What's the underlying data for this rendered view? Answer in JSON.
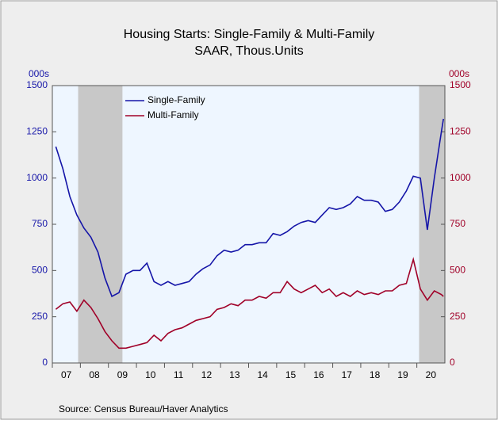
{
  "chart_data": {
    "type": "line",
    "title": "Housing Starts: Single-Family & Multi-Family",
    "subtitle": "SAAR, Thous.Units",
    "y_unit": "000s",
    "y2_unit": "000s",
    "source": "Source: Census Bureau/Haver Analytics",
    "x": [
      2007.125,
      2007.375,
      2007.625,
      2007.875,
      2008.125,
      2008.375,
      2008.625,
      2008.875,
      2009.125,
      2009.375,
      2009.625,
      2009.875,
      2010.125,
      2010.375,
      2010.625,
      2010.875,
      2011.125,
      2011.375,
      2011.625,
      2011.875,
      2012.125,
      2012.375,
      2012.625,
      2012.875,
      2013.125,
      2013.375,
      2013.625,
      2013.875,
      2014.125,
      2014.375,
      2014.625,
      2014.875,
      2015.125,
      2015.375,
      2015.625,
      2015.875,
      2016.125,
      2016.375,
      2016.625,
      2016.875,
      2017.125,
      2017.375,
      2017.625,
      2017.875,
      2018.125,
      2018.375,
      2018.625,
      2018.875,
      2019.125,
      2019.375,
      2019.625,
      2019.875,
      2020.125,
      2020.375,
      2020.625,
      2020.875,
      2020.95
    ],
    "series": [
      {
        "name": "Single-Family",
        "color": "#1515a8",
        "axis": "y",
        "values": [
          1170,
          1050,
          900,
          800,
          730,
          680,
          600,
          460,
          360,
          380,
          480,
          500,
          500,
          540,
          440,
          420,
          440,
          420,
          430,
          440,
          480,
          510,
          530,
          580,
          610,
          600,
          610,
          640,
          640,
          650,
          650,
          700,
          690,
          710,
          740,
          760,
          770,
          760,
          800,
          840,
          830,
          840,
          860,
          900,
          880,
          880,
          870,
          820,
          830,
          870,
          930,
          1010,
          1000,
          720,
          1000,
          1250,
          1320
        ]
      },
      {
        "name": "Multi-Family",
        "color": "#a00028",
        "axis": "y2",
        "values": [
          290,
          320,
          330,
          280,
          340,
          300,
          240,
          170,
          120,
          80,
          80,
          90,
          100,
          110,
          150,
          120,
          160,
          180,
          190,
          210,
          230,
          240,
          250,
          290,
          300,
          320,
          310,
          340,
          340,
          360,
          350,
          380,
          380,
          440,
          400,
          380,
          400,
          420,
          380,
          400,
          360,
          380,
          360,
          390,
          370,
          380,
          370,
          390,
          390,
          420,
          430,
          560,
          400,
          340,
          390,
          370,
          360
        ]
      }
    ],
    "recessions": [
      [
        2007.92,
        2009.5
      ],
      [
        2020.08,
        2021
      ]
    ],
    "xlim": [
      2007,
      2021
    ],
    "xticks": [
      {
        "value": 2007,
        "label": "07"
      },
      {
        "value": 2008,
        "label": "08"
      },
      {
        "value": 2009,
        "label": "09"
      },
      {
        "value": 2010,
        "label": "10"
      },
      {
        "value": 2011,
        "label": "11"
      },
      {
        "value": 2012,
        "label": "12"
      },
      {
        "value": 2013,
        "label": "13"
      },
      {
        "value": 2014,
        "label": "14"
      },
      {
        "value": 2015,
        "label": "15"
      },
      {
        "value": 2016,
        "label": "16"
      },
      {
        "value": 2017,
        "label": "17"
      },
      {
        "value": 2018,
        "label": "18"
      },
      {
        "value": 2019,
        "label": "19"
      },
      {
        "value": 2020,
        "label": "20"
      }
    ],
    "ylim": [
      0,
      1500
    ],
    "yticks": [
      0,
      250,
      500,
      750,
      1000,
      1250,
      1500
    ],
    "y2lim": [
      0,
      1500
    ],
    "y2ticks": [
      0,
      250,
      500,
      750,
      1000,
      1250,
      1500
    ],
    "legend": "upper-left"
  }
}
